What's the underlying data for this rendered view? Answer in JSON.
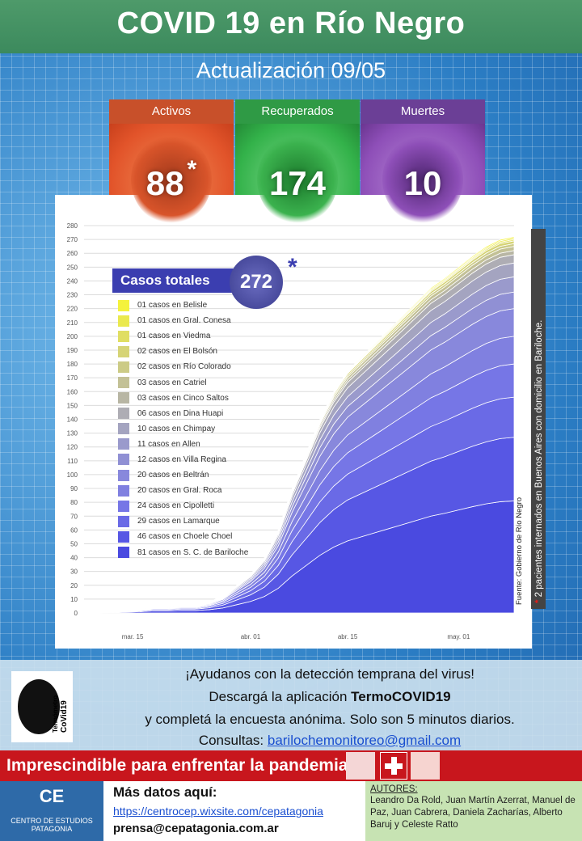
{
  "header": {
    "title": "COVID 19 en Río Negro",
    "subtitle": "Actualización  09/05"
  },
  "stats": [
    {
      "label": "Activos",
      "value": "88",
      "mark": "*",
      "color": "#e2542a",
      "label_bg": "#c8502a"
    },
    {
      "label": "Recuperados",
      "value": "174",
      "mark": "",
      "color": "#33b24a",
      "label_bg": "#2f9a45"
    },
    {
      "label": "Muertes",
      "value": "10",
      "mark": "",
      "color": "#8e4fb8",
      "label_bg": "#6b3f96"
    }
  ],
  "totals": {
    "label": "Casos totales",
    "value": "272",
    "mark": "*"
  },
  "side_note": "2 pacientes internados en Buenos Aires con domicilio en Bariloche.",
  "side_mark": "*",
  "source": "Fuente: Gobierno de Río Negro",
  "chart_data": {
    "type": "area",
    "ylim": [
      0,
      280
    ],
    "yticks": [
      0,
      10,
      20,
      30,
      40,
      50,
      60,
      70,
      80,
      90,
      100,
      110,
      120,
      130,
      140,
      150,
      160,
      170,
      180,
      190,
      200,
      210,
      220,
      230,
      240,
      250,
      260,
      270,
      280
    ],
    "xticks": [
      {
        "label": "mar. 15",
        "day": 15
      },
      {
        "label": "abr. 01",
        "day": 32
      },
      {
        "label": "abr. 15",
        "day": 46
      },
      {
        "label": "may. 01",
        "day": 62
      }
    ],
    "xrange": [
      8,
      70
    ],
    "days": [
      8,
      10,
      12,
      14,
      16,
      18,
      20,
      22,
      24,
      26,
      28,
      30,
      32,
      34,
      36,
      38,
      40,
      42,
      44,
      46,
      48,
      50,
      52,
      54,
      56,
      58,
      60,
      62,
      64,
      66,
      68,
      70
    ],
    "totals": [
      0,
      0,
      1,
      2,
      3,
      5,
      5,
      6,
      6,
      8,
      12,
      20,
      28,
      40,
      60,
      90,
      115,
      140,
      160,
      175,
      185,
      195,
      205,
      215,
      225,
      235,
      242,
      250,
      258,
      265,
      270,
      272
    ],
    "series": [
      {
        "name": "S. C. de Bariloche",
        "value": 81,
        "color": "#4a4ae0"
      },
      {
        "name": "Choele Choel",
        "value": 46,
        "color": "#5757e4"
      },
      {
        "name": "Lamarque",
        "value": 29,
        "color": "#6a6ae6"
      },
      {
        "name": "Cipolletti",
        "value": 24,
        "color": "#7676e6"
      },
      {
        "name": "Gral. Roca",
        "value": 20,
        "color": "#8080e0"
      },
      {
        "name": "Beltrán",
        "value": 20,
        "color": "#8888dc"
      },
      {
        "name": "Villa Regina",
        "value": 12,
        "color": "#9090d4"
      },
      {
        "name": "Allen",
        "value": 11,
        "color": "#9a9acc"
      },
      {
        "name": "Chimpay",
        "value": 10,
        "color": "#a4a4c0"
      },
      {
        "name": "Dina Huapi",
        "value": 6,
        "color": "#aeadb4"
      },
      {
        "name": "Cinco Saltos",
        "value": 3,
        "color": "#b8b6a4"
      },
      {
        "name": "Catriel",
        "value": 3,
        "color": "#c3c196"
      },
      {
        "name": "Río Colorado",
        "value": 2,
        "color": "#cccb86"
      },
      {
        "name": "El Bolsón",
        "value": 2,
        "color": "#d6d476"
      },
      {
        "name": "Viedma",
        "value": 1,
        "color": "#e0de62"
      },
      {
        "name": "Gral. Conesa",
        "value": 1,
        "color": "#eae94e"
      },
      {
        "name": "Belisle",
        "value": 1,
        "color": "#f4f23c"
      }
    ]
  },
  "legend": [
    "01 casos en Belisle",
    "01 casos en Gral. Conesa",
    "01 casos en Viedma",
    "02 casos en El Bolsón",
    "02 casos en Río Colorado",
    "03 casos en Catriel",
    "03 casos en Cinco Saltos",
    "06 casos en Dina Huapi",
    "10 casos en Chimpay",
    "11 casos en Allen",
    "12 casos en Villa Regina",
    "20 casos en Beltrán",
    "20 casos en Gral. Roca",
    "24 casos en Cipolletti",
    "29 casos en Lamarque",
    "46 casos en Choele Choel",
    "81 casos en S. C. de Bariloche"
  ],
  "message": {
    "line1": "¡Ayudanos con la detección temprana del virus!",
    "line2a": "Descargá la aplicación ",
    "line2b": "TermoCOVID19",
    "line3": "y completá la encuesta anónima. Solo son 5 minutos diarios.",
    "line4a": "Consultas: ",
    "email": "barilochemonitoreo@gmail.com",
    "logo_text1": "Termómetro",
    "logo_text2": "CoVid19"
  },
  "banner": {
    "text": "Imprescindible para enfrentar la pandemia:"
  },
  "footer": {
    "cep_short": "CE",
    "cep_name1": "CENTRO DE ESTUDIOS",
    "cep_name2": "PATAGONIA",
    "more": "Más datos aquí:",
    "url": "https://centrocep.wixsite.com/cepatagonia",
    "press": "prensa@cepatagonia.com.ar",
    "authors_title": "AUTORES:",
    "authors": "Leandro Da Rold, Juan Martín Azerrat, Manuel de Paz, Juan Cabrera, Daniela Zacharías, Alberto Baruj y Celeste Ratto"
  }
}
